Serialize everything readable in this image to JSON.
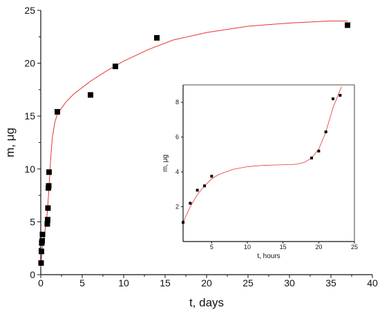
{
  "chart_data": [
    {
      "type": "scatter",
      "xlabel": "t, days",
      "ylabel": "m, μg",
      "xlim": [
        0,
        40
      ],
      "ylim": [
        0,
        25
      ],
      "xticks": [
        0,
        5,
        10,
        15,
        20,
        25,
        30,
        35,
        40
      ],
      "yticks": [
        0,
        5,
        10,
        15,
        20,
        25
      ],
      "series": [
        {
          "points": [
            {
              "x": 0.04,
              "y": 1.1
            },
            {
              "x": 0.08,
              "y": 2.2
            },
            {
              "x": 0.12,
              "y": 3.0
            },
            {
              "x": 0.17,
              "y": 3.2
            },
            {
              "x": 0.21,
              "y": 3.8
            },
            {
              "x": 0.79,
              "y": 4.8
            },
            {
              "x": 0.83,
              "y": 5.2
            },
            {
              "x": 0.87,
              "y": 6.3
            },
            {
              "x": 0.92,
              "y": 8.2
            },
            {
              "x": 0.96,
              "y": 8.4
            },
            {
              "x": 1.0,
              "y": 9.7
            },
            {
              "x": 2.0,
              "y": 15.4
            },
            {
              "x": 6.0,
              "y": 17.0
            },
            {
              "x": 9.0,
              "y": 19.7
            },
            {
              "x": 14.0,
              "y": 22.4
            },
            {
              "x": 37.0,
              "y": 23.6
            }
          ],
          "marker": "square",
          "marker_color": "#000000"
        },
        {
          "type": "line",
          "fit": true,
          "color": "#e8322e",
          "points": [
            {
              "x": 0,
              "y": 0.7
            },
            {
              "x": 0.2,
              "y": 2.7
            },
            {
              "x": 0.4,
              "y": 3.6
            },
            {
              "x": 0.6,
              "y": 4.6
            },
            {
              "x": 0.8,
              "y": 6.0
            },
            {
              "x": 1.0,
              "y": 8.3
            },
            {
              "x": 1.2,
              "y": 11.0
            },
            {
              "x": 1.4,
              "y": 13.0
            },
            {
              "x": 1.7,
              "y": 14.4
            },
            {
              "x": 2.0,
              "y": 15.2
            },
            {
              "x": 3.0,
              "y": 16.3
            },
            {
              "x": 4.0,
              "y": 17.1
            },
            {
              "x": 6.0,
              "y": 18.3
            },
            {
              "x": 8.0,
              "y": 19.3
            },
            {
              "x": 10.0,
              "y": 20.2
            },
            {
              "x": 13.0,
              "y": 21.3
            },
            {
              "x": 16.0,
              "y": 22.2
            },
            {
              "x": 20.0,
              "y": 22.9
            },
            {
              "x": 25.0,
              "y": 23.5
            },
            {
              "x": 30.0,
              "y": 23.8
            },
            {
              "x": 35.0,
              "y": 24.0
            },
            {
              "x": 37.0,
              "y": 24.0
            }
          ]
        }
      ]
    },
    {
      "type": "scatter",
      "inset": true,
      "xlabel": "t, hours",
      "ylabel": "m, μg",
      "xlim": [
        1,
        25
      ],
      "ylim": [
        0,
        9
      ],
      "xticks": [
        5,
        10,
        15,
        20,
        25
      ],
      "yticks": [
        2,
        4,
        6,
        8
      ],
      "series": [
        {
          "points": [
            {
              "x": 1,
              "y": 1.1
            },
            {
              "x": 2,
              "y": 2.2
            },
            {
              "x": 3,
              "y": 2.95
            },
            {
              "x": 4,
              "y": 3.2
            },
            {
              "x": 5,
              "y": 3.75
            },
            {
              "x": 19,
              "y": 4.8
            },
            {
              "x": 20,
              "y": 5.2
            },
            {
              "x": 21,
              "y": 6.3
            },
            {
              "x": 22,
              "y": 8.2
            },
            {
              "x": 23,
              "y": 8.4
            }
          ],
          "marker": "square",
          "marker_color": "#000000"
        },
        {
          "type": "line",
          "fit": true,
          "color": "#e8322e",
          "points": [
            {
              "x": 1,
              "y": 1.1
            },
            {
              "x": 2,
              "y": 2.0
            },
            {
              "x": 3,
              "y": 2.7
            },
            {
              "x": 4,
              "y": 3.2
            },
            {
              "x": 5,
              "y": 3.6
            },
            {
              "x": 6,
              "y": 3.85
            },
            {
              "x": 8,
              "y": 4.15
            },
            {
              "x": 10,
              "y": 4.3
            },
            {
              "x": 12,
              "y": 4.37
            },
            {
              "x": 14,
              "y": 4.4
            },
            {
              "x": 16,
              "y": 4.42
            },
            {
              "x": 17,
              "y": 4.45
            },
            {
              "x": 18,
              "y": 4.55
            },
            {
              "x": 19,
              "y": 4.8
            },
            {
              "x": 20,
              "y": 5.3
            },
            {
              "x": 21,
              "y": 6.3
            },
            {
              "x": 22,
              "y": 7.7
            },
            {
              "x": 23,
              "y": 8.7
            },
            {
              "x": 23.2,
              "y": 8.9
            }
          ]
        }
      ]
    }
  ]
}
